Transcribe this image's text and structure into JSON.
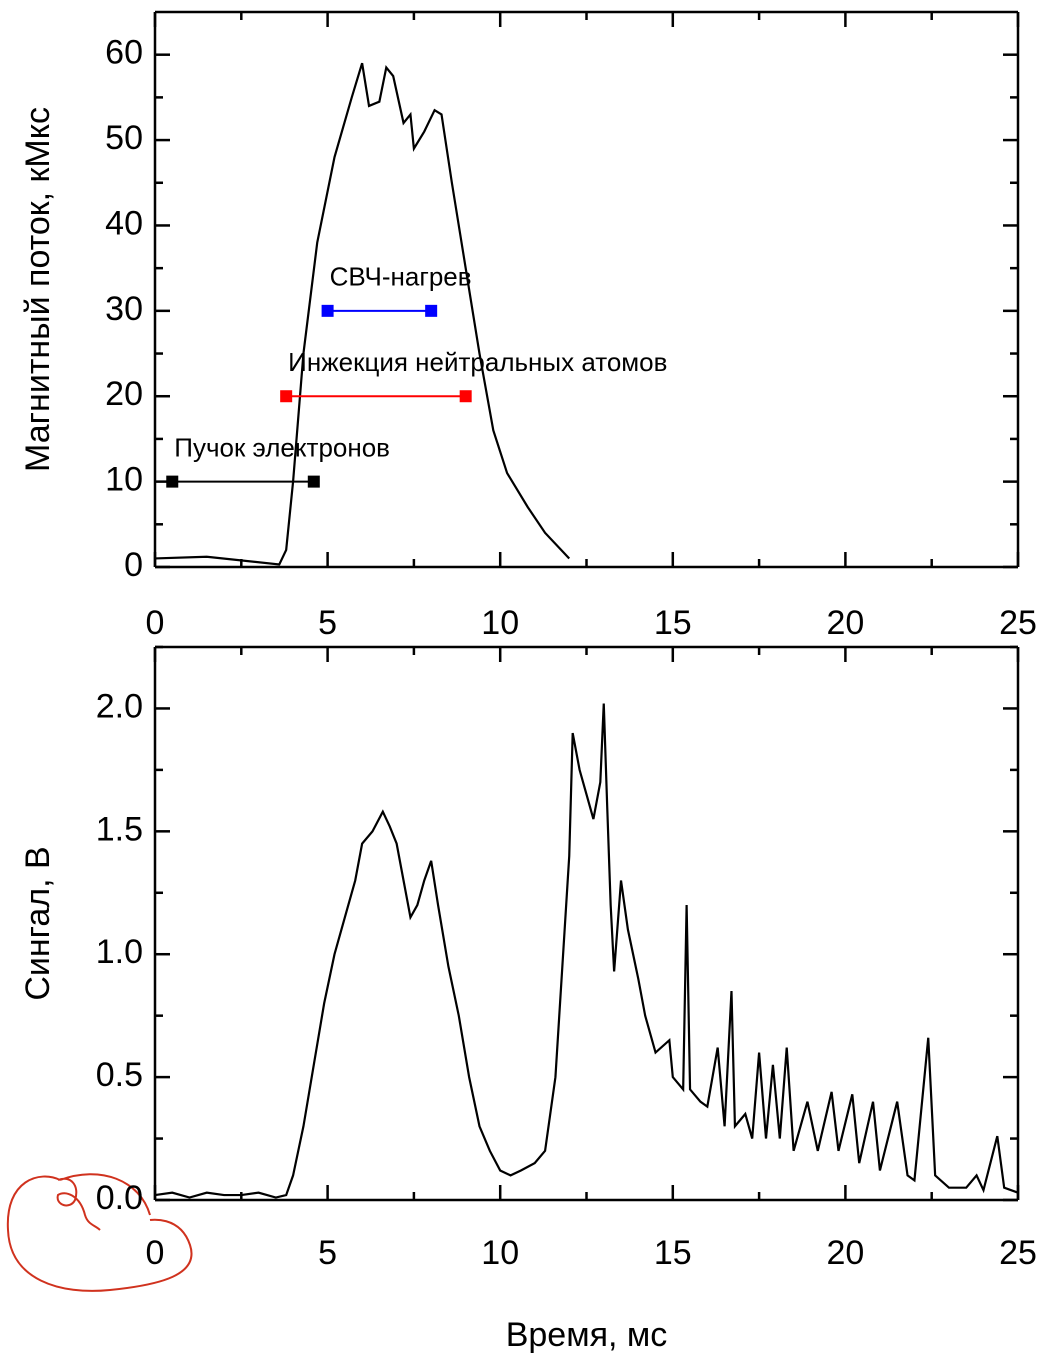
{
  "chart_data": [
    {
      "type": "line",
      "y_label": "Магнитный поток, кМкс",
      "xlim": [
        0,
        25
      ],
      "xticks": [
        0,
        5,
        10,
        15,
        20,
        25
      ],
      "ylim": [
        0,
        65
      ],
      "yticks": [
        0,
        10,
        20,
        30,
        40,
        50,
        60
      ],
      "series": [
        {
          "color": "#000000",
          "x": [
            0,
            1.5,
            3.6,
            3.8,
            4.0,
            4.3,
            4.7,
            5.2,
            5.7,
            6.0,
            6.2,
            6.5,
            6.7,
            6.9,
            7.2,
            7.4,
            7.5,
            7.8,
            8.1,
            8.3,
            8.6,
            9.0,
            9.4,
            9.8,
            10.2,
            10.8,
            11.3,
            12.0
          ],
          "values": [
            1,
            1.2,
            0.3,
            2,
            10,
            25,
            38,
            48,
            55,
            59,
            54,
            54.5,
            58.5,
            57.5,
            52,
            53,
            49,
            51,
            53.5,
            53,
            45,
            35,
            25,
            16,
            11,
            7,
            4,
            1
          ]
        },
        {
          "name": "Пучок электронов",
          "color": "#000000",
          "marker": "square",
          "x": [
            0.5,
            4.6
          ],
          "values": [
            10,
            10
          ]
        },
        {
          "name": "Инжекция нейтральных атомов",
          "color": "#ff0000",
          "marker": "square",
          "x": [
            3.8,
            9.0
          ],
          "values": [
            20,
            20
          ]
        },
        {
          "name": "СВЧ-нагрев",
          "color": "#0000ff",
          "marker": "square",
          "x": [
            5.0,
            8.0
          ],
          "values": [
            30,
            30
          ]
        }
      ]
    },
    {
      "type": "line",
      "y_label": "Сингал, В",
      "x_label": "Время, мс",
      "xlim": [
        0,
        25
      ],
      "xticks": [
        0,
        5,
        10,
        15,
        20,
        25
      ],
      "ylim": [
        0,
        2.25
      ],
      "yticks": [
        {
          "value": 0,
          "label": "0.0"
        },
        0.5,
        {
          "value": 1,
          "label": "1.0"
        },
        1.5,
        {
          "value": 2,
          "label": "2.0"
        }
      ],
      "series": [
        {
          "color": "#000000",
          "x": [
            0,
            0.5,
            1,
            1.5,
            2,
            2.5,
            3,
            3.5,
            3.8,
            4.0,
            4.3,
            4.6,
            4.9,
            5.2,
            5.5,
            5.8,
            6.0,
            6.3,
            6.6,
            6.8,
            7.0,
            7.2,
            7.4,
            7.6,
            7.8,
            8.0,
            8.2,
            8.5,
            8.8,
            9.1,
            9.4,
            9.7,
            10.0,
            10.3,
            10.6,
            11.0,
            11.3,
            11.6,
            11.8,
            12.0,
            12.1,
            12.3,
            12.5,
            12.7,
            12.9,
            13.0,
            13.1,
            13.2,
            13.3,
            13.5,
            13.7,
            14.0,
            14.2,
            14.5,
            14.9,
            15.0,
            15.3,
            15.4,
            15.5,
            15.8,
            16.0,
            16.3,
            16.5,
            16.7,
            16.8,
            17.1,
            17.3,
            17.5,
            17.7,
            17.9,
            18.1,
            18.3,
            18.5,
            18.9,
            19.2,
            19.6,
            19.8,
            20.2,
            20.4,
            20.8,
            21.0,
            21.5,
            21.8,
            22.0,
            22.4,
            22.6,
            23.0,
            23.5,
            23.8,
            24.0,
            24.4,
            24.6,
            25
          ],
          "values": [
            0.02,
            0.03,
            0.01,
            0.03,
            0.02,
            0.02,
            0.03,
            0.01,
            0.02,
            0.1,
            0.3,
            0.55,
            0.8,
            1.0,
            1.15,
            1.3,
            1.45,
            1.5,
            1.58,
            1.52,
            1.45,
            1.3,
            1.15,
            1.2,
            1.3,
            1.38,
            1.2,
            0.95,
            0.75,
            0.5,
            0.3,
            0.2,
            0.12,
            0.1,
            0.12,
            0.15,
            0.2,
            0.5,
            0.95,
            1.4,
            1.9,
            1.75,
            1.65,
            1.55,
            1.7,
            2.02,
            1.6,
            1.2,
            0.93,
            1.3,
            1.1,
            0.9,
            0.75,
            0.6,
            0.65,
            0.5,
            0.45,
            1.2,
            0.45,
            0.4,
            0.38,
            0.62,
            0.3,
            0.85,
            0.3,
            0.35,
            0.25,
            0.6,
            0.25,
            0.55,
            0.25,
            0.62,
            0.2,
            0.4,
            0.2,
            0.44,
            0.2,
            0.43,
            0.15,
            0.4,
            0.12,
            0.4,
            0.1,
            0.08,
            0.66,
            0.1,
            0.05,
            0.05,
            0.1,
            0.04,
            0.26,
            0.05,
            0.03
          ]
        }
      ]
    }
  ]
}
